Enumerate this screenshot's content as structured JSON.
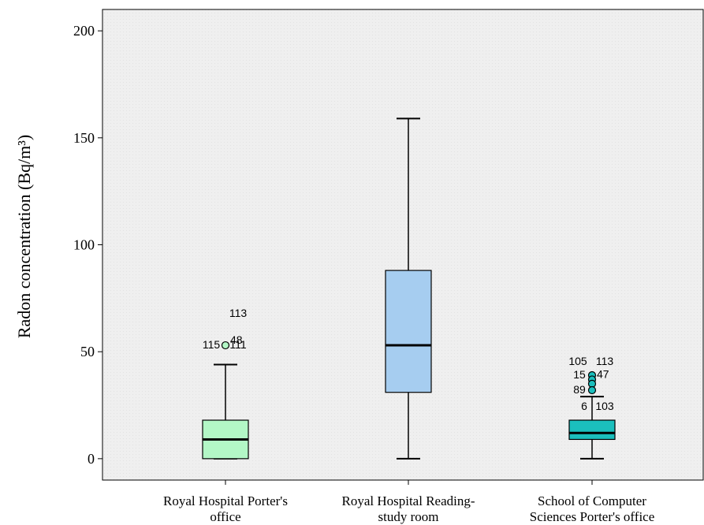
{
  "chart_data": {
    "type": "boxplot",
    "title": "",
    "xlabel": "",
    "ylabel": "Radon concentration  (Bq/m³)",
    "ylim": [
      -10,
      210
    ],
    "yticks": [
      0,
      50,
      100,
      150,
      200
    ],
    "grid": false,
    "legend": "none",
    "categories": [
      [
        "Royal Hospital Porter's",
        "office"
      ],
      [
        "Royal Hospital Reading-",
        "study room"
      ],
      [
        "School of Computer",
        "Sciences  Porter's office"
      ]
    ],
    "boxes": [
      {
        "min": 0,
        "q1": 0,
        "median": 9,
        "q3": 18,
        "max": 44,
        "color": "#b3f7c6",
        "outliers": [
          {
            "value": 53,
            "labels": [
              {
                "text": "113",
                "pos": "upper-right"
              },
              {
                "text": "48",
                "pos": "right"
              },
              {
                "text": "115",
                "pos": "lower-left"
              },
              {
                "text": "111",
                "pos": "lower-right"
              }
            ]
          }
        ]
      },
      {
        "min": 0,
        "q1": 31,
        "median": 53,
        "q3": 88,
        "max": 159,
        "color": "#a6cdf0",
        "outliers": []
      },
      {
        "min": 0,
        "q1": 9,
        "median": 12,
        "q3": 18,
        "max": 29,
        "color": "#1bbfbd",
        "outliers": [
          {
            "value": 39,
            "labels": [
              {
                "text": "105",
                "pos": "top-left"
              },
              {
                "text": "113",
                "pos": "top-right"
              },
              {
                "text": "15",
                "pos": "left"
              }
            ]
          },
          {
            "value": 37,
            "labels": [
              {
                "text": "47",
                "pos": "right"
              }
            ]
          },
          {
            "value": 35,
            "labels": []
          },
          {
            "value": 32,
            "labels": [
              {
                "text": "89",
                "pos": "left"
              },
              {
                "text": "6",
                "pos": "bottom-left"
              },
              {
                "text": "103",
                "pos": "bottom-right"
              }
            ]
          }
        ]
      }
    ]
  }
}
